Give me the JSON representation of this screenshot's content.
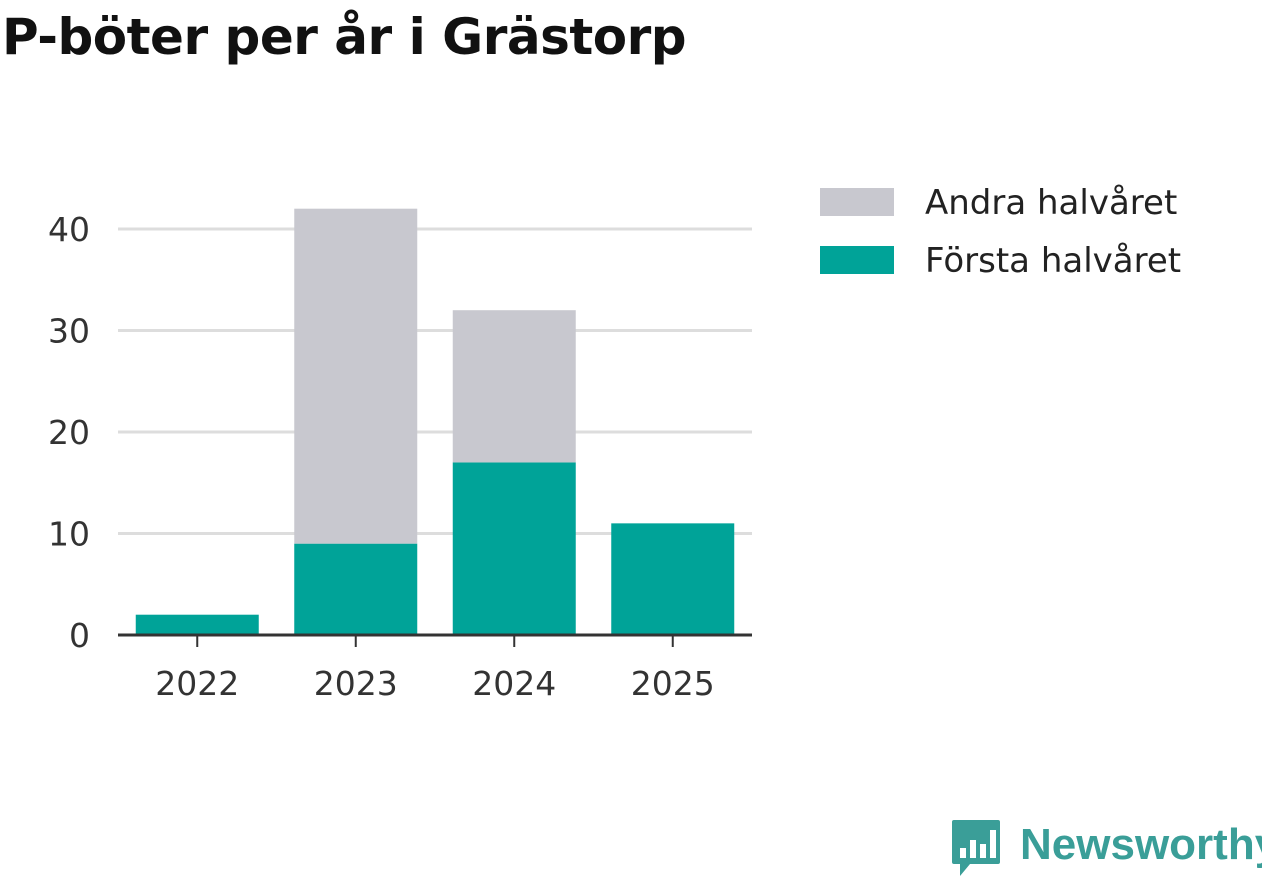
{
  "title": "P-böter per år i Grästorp",
  "brand": {
    "name": "Newsworthy",
    "icon": "newsworthy-chart-bubble-icon",
    "color": "#3a9e98"
  },
  "chart_data": {
    "type": "bar",
    "stacked": true,
    "categories": [
      "2022",
      "2023",
      "2024",
      "2025"
    ],
    "series": [
      {
        "name": "Första halvåret",
        "color": "#00a398",
        "values": [
          2,
          9,
          17,
          11
        ]
      },
      {
        "name": "Andra halvåret",
        "color": "#c8c8cf",
        "values": [
          0,
          33,
          15,
          0
        ]
      }
    ],
    "legend_order": [
      "Andra halvåret",
      "Första halvåret"
    ],
    "ylim": [
      0,
      42
    ],
    "yticks": [
      0,
      10,
      20,
      30,
      40
    ],
    "grid": true,
    "legend_position": "top-right",
    "xlabel": "",
    "ylabel": ""
  }
}
